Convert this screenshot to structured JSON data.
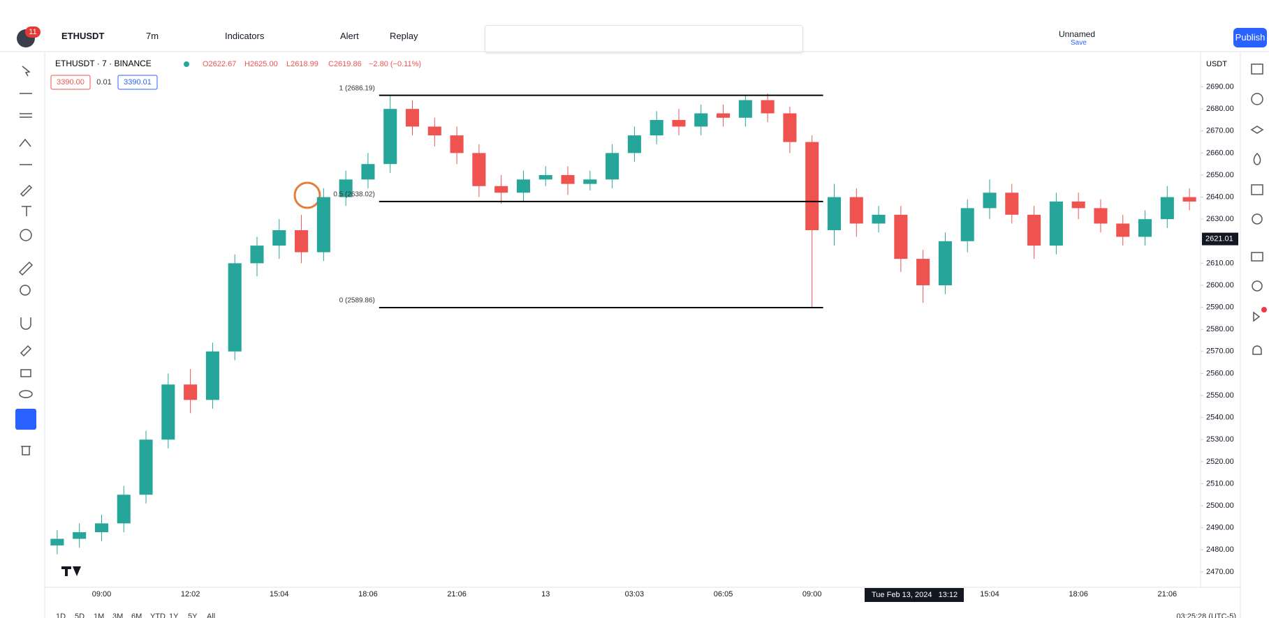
{
  "toolbar": {
    "badge": "11",
    "symbol": "ETHUSDT",
    "interval": "7m",
    "indicators": "Indicators",
    "alert": "Alert",
    "replay": "Replay",
    "layout": "Unnamed",
    "save": "Save",
    "publish": "Publish"
  },
  "legend": {
    "title": "ETHUSDT · 7 · BINANCE",
    "open": "O2622.67",
    "high": "H2625.00",
    "low": "L2618.99",
    "close": "C2619.86",
    "change": "−2.80 (−0.11%)",
    "sell": "3390.00",
    "spread": "0.01",
    "buy": "3390.01"
  },
  "currency": "USDT",
  "chart_data": {
    "type": "candlestick",
    "categories": [
      null,
      null,
      "09:00",
      null,
      null,
      null,
      "12:02",
      null,
      null,
      null,
      "15:04",
      null,
      null,
      null,
      "18:06",
      null,
      null,
      null,
      "21:06",
      null,
      null,
      null,
      "13",
      null,
      null,
      null,
      "03:03",
      null,
      null,
      null,
      "06:05",
      null,
      null,
      null,
      "09:00",
      null,
      null,
      null,
      null,
      null,
      null,
      null,
      "15:04",
      null,
      null,
      null,
      "18:06",
      null,
      null,
      null,
      "21:06",
      null
    ],
    "open": [
      2482,
      2485,
      2488,
      2492,
      2505,
      2530,
      2555,
      2548,
      2570,
      2610,
      2618,
      2625,
      2615,
      2640,
      2648,
      2655,
      2680,
      2672,
      2668,
      2660,
      2645,
      2642,
      2648,
      2650,
      2646,
      2648,
      2660,
      2668,
      2675,
      2672,
      2678,
      2676,
      2684,
      2678,
      2665,
      2625,
      2640,
      2628,
      2632,
      2612,
      2600,
      2620,
      2635,
      2642,
      2632,
      2618,
      2638,
      2635,
      2628,
      2622,
      2630,
      2640
    ],
    "high": [
      2489,
      2492,
      2496,
      2509,
      2534,
      2560,
      2562,
      2574,
      2614,
      2622,
      2630,
      2632,
      2644,
      2652,
      2660,
      2686,
      2684,
      2676,
      2672,
      2664,
      2650,
      2652,
      2654,
      2654,
      2652,
      2664,
      2672,
      2679,
      2680,
      2682,
      2682,
      2686,
      2687,
      2681,
      2668,
      2646,
      2644,
      2636,
      2636,
      2616,
      2624,
      2639,
      2648,
      2646,
      2636,
      2642,
      2642,
      2639,
      2632,
      2634,
      2645,
      2644
    ],
    "low": [
      2478,
      2481,
      2484,
      2488,
      2501,
      2526,
      2542,
      2544,
      2566,
      2604,
      2612,
      2610,
      2611,
      2636,
      2644,
      2651,
      2668,
      2663,
      2655,
      2640,
      2637,
      2638,
      2645,
      2641,
      2643,
      2644,
      2656,
      2664,
      2668,
      2668,
      2672,
      2672,
      2674,
      2660,
      2590,
      2618,
      2622,
      2624,
      2606,
      2592,
      2596,
      2615,
      2630,
      2628,
      2612,
      2614,
      2630,
      2624,
      2618,
      2618,
      2626,
      2634
    ],
    "close": [
      2485,
      2488,
      2492,
      2505,
      2530,
      2555,
      2548,
      2570,
      2610,
      2618,
      2625,
      2615,
      2640,
      2648,
      2655,
      2680,
      2672,
      2668,
      2660,
      2645,
      2642,
      2648,
      2650,
      2646,
      2648,
      2660,
      2668,
      2675,
      2672,
      2678,
      2676,
      2684,
      2678,
      2665,
      2625,
      2640,
      2628,
      2632,
      2612,
      2600,
      2620,
      2635,
      2642,
      2632,
      2618,
      2638,
      2635,
      2628,
      2622,
      2630,
      2640,
      2638
    ],
    "up_color": "#26a69a",
    "down_color": "#ef5350",
    "ylim": [
      2463,
      2706
    ],
    "yticks": [
      {
        "value": 2470,
        "label": "2470.00"
      },
      {
        "value": 2480,
        "label": "2480.00"
      },
      {
        "value": 2490,
        "label": "2490.00"
      },
      {
        "value": 2500,
        "label": "2500.00"
      },
      {
        "value": 2510,
        "label": "2510.00"
      },
      {
        "value": 2520,
        "label": "2520.00"
      },
      {
        "value": 2530,
        "label": "2530.00"
      },
      {
        "value": 2540,
        "label": "2540.00"
      },
      {
        "value": 2550,
        "label": "2550.00"
      },
      {
        "value": 2560,
        "label": "2560.00"
      },
      {
        "value": 2570,
        "label": "2570.00"
      },
      {
        "value": 2580,
        "label": "2580.00"
      },
      {
        "value": 2590,
        "label": "2590.00"
      },
      {
        "value": 2600,
        "label": "2600.00"
      },
      {
        "value": 2610,
        "label": "2610.00"
      },
      {
        "value": 2620,
        "label": "2620.00"
      },
      {
        "value": 2630,
        "label": "2630.00"
      },
      {
        "value": 2640,
        "label": "2640.00"
      },
      {
        "value": 2650,
        "label": "2650.00"
      },
      {
        "value": 2660,
        "label": "2660.00"
      },
      {
        "value": 2670,
        "label": "2670.00"
      },
      {
        "value": 2680,
        "label": "2680.00"
      },
      {
        "value": 2690,
        "label": "2690.00"
      }
    ],
    "grid": false,
    "fib_levels": [
      {
        "value": 2686.19,
        "label": "1 (2686.19)"
      },
      {
        "value": 2638.02,
        "label": "0.5 (2638.02)"
      },
      {
        "value": 2589.86,
        "label": "0 (2589.86)"
      }
    ],
    "last_price": 2621.01,
    "crosshair_label": "Tue Feb 13, 2024   13:12"
  },
  "periods": [
    "1D",
    "5D",
    "1M",
    "3M",
    "6M",
    "YTD",
    "1Y",
    "5Y",
    "All"
  ],
  "clock": "03:25:28 (UTC-5)"
}
